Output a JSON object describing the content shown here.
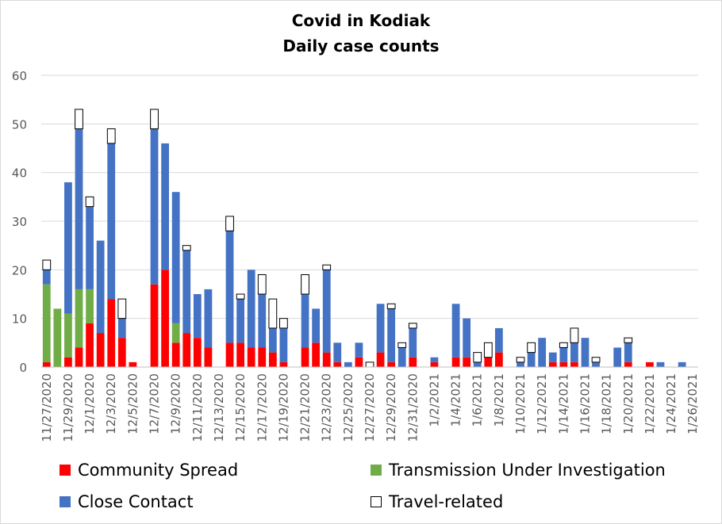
{
  "chart_data": {
    "type": "bar",
    "stacked": true,
    "title": "Covid in Kodiak",
    "subtitle": "Daily case counts",
    "ylim": [
      0,
      60
    ],
    "yticks": [
      0,
      10,
      20,
      30,
      40,
      50,
      60
    ],
    "grid": true,
    "legend_position": "bottom",
    "categories": [
      "11/27/2020",
      "11/28/2020",
      "11/29/2020",
      "11/30/2020",
      "12/1/2020",
      "12/2/2020",
      "12/3/2020",
      "12/4/2020",
      "12/5/2020",
      "12/6/2020",
      "12/7/2020",
      "12/8/2020",
      "12/9/2020",
      "12/10/2020",
      "12/11/2020",
      "12/12/2020",
      "12/13/2020",
      "12/14/2020",
      "12/15/2020",
      "12/16/2020",
      "12/17/2020",
      "12/18/2020",
      "12/19/2020",
      "12/20/2020",
      "12/21/2020",
      "12/22/2020",
      "12/23/2020",
      "12/24/2020",
      "12/25/2020",
      "12/26/2020",
      "12/27/2020",
      "12/28/2020",
      "12/29/2020",
      "12/30/2020",
      "12/31/2020",
      "1/1/2021",
      "1/2/2021",
      "1/3/2021",
      "1/4/2021",
      "1/5/2021",
      "1/6/2021",
      "1/7/2021",
      "1/8/2021",
      "1/9/2021",
      "1/10/2021",
      "1/11/2021",
      "1/12/2021",
      "1/13/2021",
      "1/14/2021",
      "1/15/2021",
      "1/16/2021",
      "1/17/2021",
      "1/18/2021",
      "1/19/2021",
      "1/20/2021",
      "1/21/2021",
      "1/22/2021",
      "1/23/2021",
      "1/24/2021",
      "1/25/2021",
      "1/26/2021"
    ],
    "tick_labels": [
      "11/27/2020",
      "11/29/2020",
      "12/1/2020",
      "12/3/2020",
      "12/5/2020",
      "12/7/2020",
      "12/9/2020",
      "12/11/2020",
      "12/13/2020",
      "12/15/2020",
      "12/17/2020",
      "12/19/2020",
      "12/21/2020",
      "12/23/2020",
      "12/25/2020",
      "12/27/2020",
      "12/29/2020",
      "12/31/2020",
      "1/2/2021",
      "1/4/2021",
      "1/6/2021",
      "1/8/2021",
      "1/10/2021",
      "1/12/2021",
      "1/14/2021",
      "1/16/2021",
      "1/18/2021",
      "1/20/2021",
      "1/22/2021",
      "1/24/2021",
      "1/26/2021"
    ],
    "series": [
      {
        "name": "Community Spread",
        "color": "#ff0000",
        "values": [
          1,
          0,
          2,
          4,
          9,
          7,
          14,
          6,
          1,
          0,
          17,
          20,
          5,
          7,
          6,
          4,
          0,
          5,
          5,
          4,
          4,
          3,
          1,
          0,
          4,
          5,
          3,
          1,
          0,
          2,
          0,
          3,
          1,
          0,
          2,
          0,
          1,
          0,
          2,
          2,
          0,
          2,
          3,
          0,
          0,
          0,
          0,
          1,
          1,
          1,
          0,
          0,
          0,
          0,
          1,
          0,
          1,
          0,
          0,
          0,
          0
        ]
      },
      {
        "name": "Transmission Under Investigation",
        "color": "#70ad47",
        "values": [
          16,
          12,
          9,
          12,
          7,
          0,
          0,
          0,
          0,
          0,
          0,
          0,
          4,
          0,
          0,
          0,
          0,
          0,
          0,
          0,
          0,
          0,
          0,
          0,
          0,
          0,
          0,
          0,
          0,
          0,
          0,
          0,
          0,
          0,
          0,
          0,
          0,
          0,
          0,
          0,
          0,
          0,
          0,
          0,
          0,
          0,
          0,
          0,
          0,
          0,
          0,
          0,
          0,
          0,
          0,
          0,
          0,
          0,
          0,
          0,
          0
        ]
      },
      {
        "name": "Close Contact",
        "color": "#4472c4",
        "values": [
          3,
          0,
          27,
          33,
          17,
          19,
          32,
          4,
          0,
          0,
          32,
          26,
          27,
          17,
          9,
          12,
          0,
          23,
          9,
          16,
          11,
          5,
          7,
          0,
          11,
          7,
          17,
          4,
          1,
          3,
          0,
          10,
          11,
          4,
          6,
          0,
          1,
          0,
          11,
          8,
          1,
          0,
          5,
          0,
          1,
          3,
          6,
          2,
          3,
          4,
          6,
          1,
          0,
          4,
          4,
          0,
          0,
          1,
          0,
          1,
          0
        ]
      },
      {
        "name": "Travel-related",
        "color": "#ffffff",
        "values": [
          2,
          0,
          0,
          4,
          2,
          0,
          3,
          4,
          0,
          0,
          4,
          0,
          0,
          1,
          0,
          0,
          0,
          3,
          1,
          0,
          4,
          6,
          2,
          0,
          4,
          0,
          1,
          0,
          0,
          0,
          1,
          0,
          1,
          1,
          1,
          0,
          0,
          0,
          0,
          0,
          2,
          3,
          0,
          0,
          1,
          2,
          0,
          0,
          1,
          3,
          0,
          1,
          0,
          0,
          1,
          0,
          0,
          0,
          0,
          0,
          0
        ]
      }
    ]
  }
}
